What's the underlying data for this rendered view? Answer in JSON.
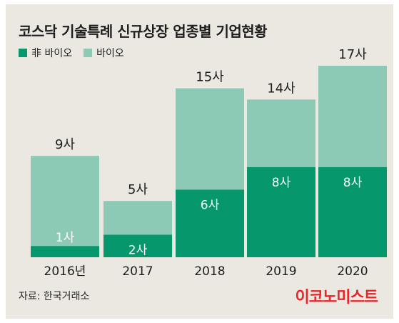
{
  "title": "코스닥 기술특례 신규상장 업종별 기업현황",
  "legend": [
    {
      "label": "非 바이오",
      "color": "#07976c"
    },
    {
      "label": "바이오",
      "color": "#8dcab6"
    }
  ],
  "source": "자료: 한국거래소",
  "brand": "이코노미스트",
  "chart_data": {
    "type": "bar",
    "stacked": true,
    "categories": [
      "2016년",
      "2017",
      "2018",
      "2019",
      "2020"
    ],
    "series": [
      {
        "name": "非 바이오",
        "values": [
          1,
          2,
          6,
          8,
          8
        ],
        "labels": [
          "1사",
          "2사",
          "6사",
          "8사",
          "8사"
        ],
        "color": "#07976c"
      },
      {
        "name": "바이오",
        "values": [
          8,
          3,
          9,
          6,
          9
        ],
        "color": "#8dcab6"
      }
    ],
    "totals": [
      9,
      5,
      15,
      14,
      17
    ],
    "total_labels": [
      "9사",
      "5사",
      "15사",
      "14사",
      "17사"
    ],
    "ylim": [
      0,
      17
    ],
    "grid": false,
    "legend_position": "top-left"
  }
}
